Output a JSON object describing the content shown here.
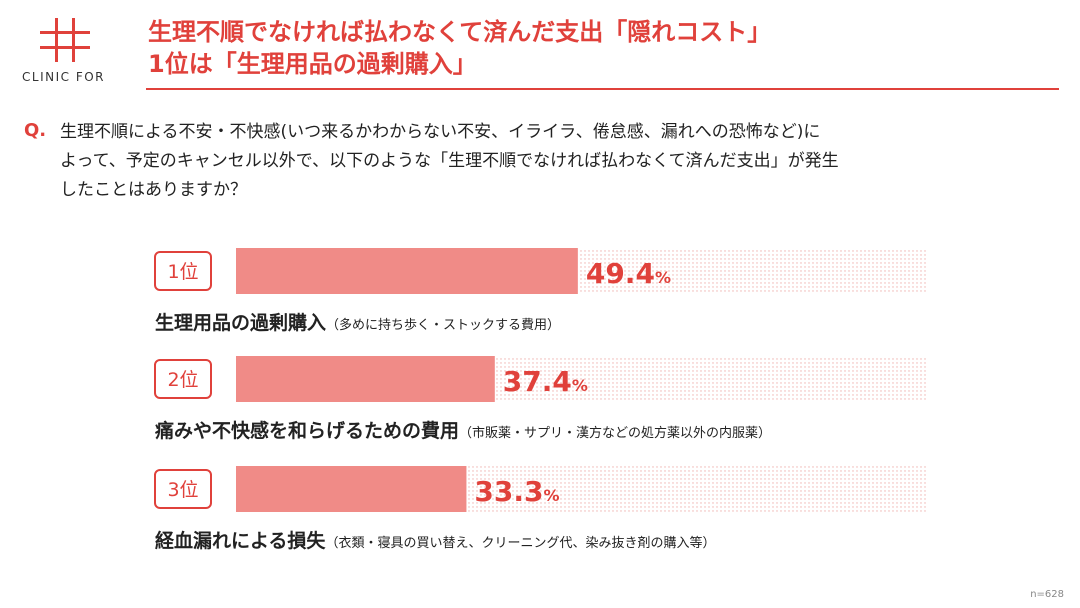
{
  "logo": {
    "text": "CLINIC FOR",
    "color": "#e0413b"
  },
  "title_lines": [
    "生理不順でなければ払わなくて済んだ支出「隠れコスト」",
    "1位は「生理用品の過剰購入」"
  ],
  "question": {
    "mark": "Q.",
    "lines": [
      "生理不順による不安・不快感(いつ来るかわからない不安、イライラ、倦怠感、漏れへの恐怖など)に",
      "よって、予定のキャンセル以外で、以下のような「生理不順でなければ払わなくて済んだ支出」が発生",
      "したことはありますか？"
    ]
  },
  "colors": {
    "accent": "#e0413b",
    "bar": "#f08b87"
  },
  "chart_data": {
    "type": "bar",
    "orientation": "horizontal",
    "unit": "%",
    "xlim": [
      0,
      100
    ],
    "items": [
      {
        "rank": "1位",
        "value": 49.4,
        "value_label": "49.4",
        "label": "生理用品の過剰購入",
        "note": "（多めに持ち歩く・ストックする費用）"
      },
      {
        "rank": "2位",
        "value": 37.4,
        "value_label": "37.4",
        "label": "痛みや不快感を和らげるための費用",
        "note": "（市販薬・サプリ・漢方などの処方薬以外の内服薬）"
      },
      {
        "rank": "3位",
        "value": 33.3,
        "value_label": "33.3",
        "label": "経血漏れによる損失",
        "note": "（衣類・寝具の買い替え、クリーニング代、染み抜き剤の購入等）"
      }
    ]
  },
  "n_label": "n=628"
}
